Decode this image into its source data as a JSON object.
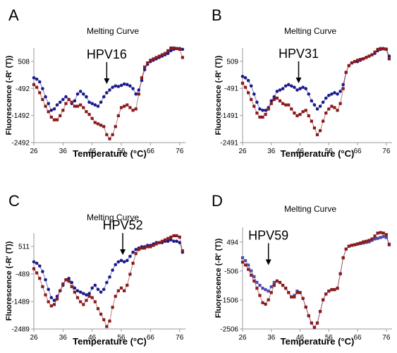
{
  "chart_data": [
    {
      "panel": "A",
      "type": "line",
      "title": "Melting Curve",
      "xlabel": "Temperature (°C)",
      "ylabel": "Fluorescence (-R' (T))",
      "xticks": [
        26,
        36,
        46,
        56,
        66,
        76
      ],
      "yticks": [
        -2492,
        -1492,
        -492,
        508
      ],
      "xlim": [
        26,
        78
      ],
      "ylim": [
        -2492,
        1000
      ],
      "grid": false,
      "annotation": {
        "text": "HPV16",
        "x": 51,
        "y": -380
      },
      "x": [
        26,
        27,
        28,
        29,
        30,
        31,
        32,
        33,
        34,
        35,
        36,
        37,
        38,
        39,
        40,
        41,
        42,
        43,
        44,
        45,
        46,
        47,
        48,
        49,
        50,
        51,
        52,
        53,
        54,
        55,
        56,
        57,
        58,
        59,
        60,
        61,
        62,
        63,
        64,
        65,
        66,
        67,
        68,
        69,
        70,
        71,
        72,
        73,
        74,
        75,
        76,
        77
      ],
      "series": [
        {
          "color": "#1a1a8c",
          "values": [
            -100,
            -150,
            -250,
            -500,
            -800,
            -1050,
            -1300,
            -1250,
            -1100,
            -1000,
            -900,
            -800,
            -900,
            -1050,
            -950,
            -700,
            -600,
            -700,
            -800,
            -1000,
            -1050,
            -1100,
            -1150,
            -1000,
            -800,
            -650,
            -550,
            -450,
            -400,
            -420,
            -380,
            -330,
            -350,
            -400,
            -500,
            -700,
            -550,
            -200,
            200,
            400,
            500,
            550,
            600,
            650,
            700,
            750,
            800,
            900,
            950,
            980,
            980,
            950
          ]
        },
        {
          "color": "#8b1a1a",
          "values": [
            -350,
            -450,
            -650,
            -900,
            -1150,
            -1350,
            -1550,
            -1650,
            -1650,
            -1500,
            -1300,
            -1050,
            -900,
            -1000,
            -1150,
            -1150,
            -1100,
            -1200,
            -1350,
            -1450,
            -1600,
            -1750,
            -1800,
            -1850,
            -1900,
            -2200,
            -2350,
            -2200,
            -1900,
            -1500,
            -1200,
            -1150,
            -1100,
            -1200,
            -1300,
            -1250,
            -700,
            -100,
            300,
            450,
            550,
            600,
            650,
            700,
            750,
            800,
            900,
            1000,
            1000,
            980,
            950,
            650
          ]
        }
      ]
    },
    {
      "panel": "B",
      "type": "line",
      "title": "Melting Curve",
      "xlabel": "Temperature (°C)",
      "ylabel": "Fluorescence (-R' (T))",
      "xticks": [
        26,
        36,
        46,
        56,
        66,
        76
      ],
      "yticks": [
        -2491,
        -1491,
        -491,
        509
      ],
      "xlim": [
        26,
        78
      ],
      "ylim": [
        -2491,
        1000
      ],
      "grid": false,
      "annotation": {
        "text": "HPV31",
        "x": 45.5,
        "y": -350
      },
      "x": [
        26,
        27,
        28,
        29,
        30,
        31,
        32,
        33,
        34,
        35,
        36,
        37,
        38,
        39,
        40,
        41,
        42,
        43,
        44,
        45,
        46,
        47,
        48,
        49,
        50,
        51,
        52,
        53,
        54,
        55,
        56,
        57,
        58,
        59,
        60,
        61,
        62,
        63,
        64,
        65,
        66,
        67,
        68,
        69,
        70,
        71,
        72,
        73,
        74,
        75,
        76,
        77
      ],
      "series": [
        {
          "color": "#1a1a8c",
          "values": [
            -50,
            -100,
            -200,
            -400,
            -700,
            -1000,
            -1250,
            -1300,
            -1300,
            -1200,
            -950,
            -800,
            -600,
            -550,
            -500,
            -400,
            -350,
            -400,
            -450,
            -550,
            -500,
            -450,
            -500,
            -700,
            -950,
            -1100,
            -1250,
            -1150,
            -1000,
            -850,
            -750,
            -700,
            -650,
            -700,
            -600,
            -350,
            100,
            350,
            450,
            500,
            500,
            550,
            600,
            650,
            700,
            750,
            800,
            900,
            950,
            980,
            960,
            700
          ]
        },
        {
          "color": "#8b1a1a",
          "values": [
            -300,
            -450,
            -650,
            -900,
            -1150,
            -1400,
            -1550,
            -1550,
            -1450,
            -1250,
            -1050,
            -900,
            -850,
            -950,
            -1050,
            -1100,
            -1100,
            -1250,
            -1400,
            -1500,
            -1450,
            -1350,
            -1300,
            -1500,
            -1700,
            -1950,
            -2200,
            -2050,
            -1700,
            -1400,
            -1250,
            -1150,
            -1200,
            -1300,
            -1050,
            -500,
            100,
            350,
            450,
            500,
            550,
            580,
            600,
            650,
            700,
            750,
            850,
            950,
            980,
            970,
            950,
            600
          ]
        }
      ]
    },
    {
      "panel": "C",
      "type": "line",
      "title": "Melting Curve",
      "xlabel": "Temperature (°C)",
      "ylabel": "Fluorescence (-R' (T))",
      "xticks": [
        26,
        36,
        46,
        56,
        66,
        76
      ],
      "yticks": [
        -2489,
        -1489,
        -489,
        511
      ],
      "xlim": [
        26,
        78
      ],
      "ylim": [
        -2489,
        1000
      ],
      "grid": false,
      "annotation": {
        "text": "HPV52",
        "x": 56.5,
        "y": 150
      },
      "x": [
        26,
        27,
        28,
        29,
        30,
        31,
        32,
        33,
        34,
        35,
        36,
        37,
        38,
        39,
        40,
        41,
        42,
        43,
        44,
        45,
        46,
        47,
        48,
        49,
        50,
        51,
        52,
        53,
        54,
        55,
        56,
        57,
        58,
        59,
        60,
        61,
        62,
        63,
        64,
        65,
        66,
        67,
        68,
        69,
        70,
        71,
        72,
        73,
        74,
        75,
        76,
        77
      ],
      "series": [
        {
          "color": "#1a1a8c",
          "values": [
            -50,
            -100,
            -200,
            -400,
            -700,
            -1050,
            -1350,
            -1450,
            -1300,
            -1100,
            -900,
            -700,
            -650,
            -800,
            -1000,
            -1100,
            -1150,
            -1200,
            -1250,
            -1200,
            -1000,
            -900,
            -1050,
            -1150,
            -1050,
            -800,
            -600,
            -350,
            -150,
            -50,
            0,
            -50,
            0,
            150,
            300,
            400,
            450,
            500,
            500,
            550,
            550,
            600,
            650,
            650,
            650,
            700,
            700,
            750,
            700,
            700,
            650,
            300
          ]
        },
        {
          "color": "#8b1a1a",
          "values": [
            -300,
            -450,
            -650,
            -950,
            -1250,
            -1500,
            -1650,
            -1600,
            -1400,
            -1100,
            -850,
            -700,
            -750,
            -950,
            -1150,
            -1350,
            -1500,
            -1600,
            -1450,
            -1300,
            -1350,
            -1500,
            -1750,
            -1950,
            -2150,
            -2400,
            -2200,
            -1700,
            -1300,
            -1100,
            -1000,
            -1100,
            -900,
            -500,
            -100,
            250,
            400,
            450,
            450,
            500,
            500,
            550,
            600,
            650,
            700,
            750,
            800,
            850,
            900,
            900,
            850,
            350
          ]
        }
      ]
    },
    {
      "panel": "D",
      "type": "line",
      "title": "Melting Curve",
      "xlabel": "Temperature (°C)",
      "ylabel": "Fluorescence (-R' (T))",
      "xticks": [
        26,
        36,
        46,
        56,
        66,
        76
      ],
      "yticks": [
        -2506,
        -1506,
        -506,
        494
      ],
      "xlim": [
        26,
        78
      ],
      "ylim": [
        -2506,
        1000
      ],
      "grid": false,
      "annotation": {
        "text": "HPV59",
        "x": 35,
        "y": -350
      },
      "x": [
        26,
        27,
        28,
        29,
        30,
        31,
        32,
        33,
        34,
        35,
        36,
        37,
        38,
        39,
        40,
        41,
        42,
        43,
        44,
        45,
        46,
        47,
        48,
        49,
        50,
        51,
        52,
        53,
        54,
        55,
        56,
        57,
        58,
        59,
        60,
        61,
        62,
        63,
        64,
        65,
        66,
        67,
        68,
        69,
        70,
        71,
        72,
        73,
        74,
        75,
        76,
        77
      ],
      "series": [
        {
          "color": "#4a4ab0",
          "values": [
            -50,
            -150,
            -300,
            -500,
            -700,
            -900,
            -1000,
            -1100,
            -1150,
            -1200,
            -1050,
            -900,
            -850,
            -900,
            -1000,
            -1100,
            -1250,
            -1400,
            -1350,
            -1200,
            -1250,
            -1450,
            -1750,
            -2050,
            -2300,
            -2450,
            -2300,
            -1900,
            -1500,
            -1300,
            -1200,
            -1150,
            -1150,
            -1100,
            -600,
            -50,
            250,
            350,
            380,
            400,
            420,
            440,
            460,
            480,
            500,
            550,
            600,
            620,
            650,
            680,
            650,
            420
          ]
        },
        {
          "color": "#8b1a1a",
          "values": [
            -200,
            -300,
            -450,
            -650,
            -850,
            -1100,
            -1350,
            -1600,
            -1650,
            -1500,
            -1250,
            -1000,
            -850,
            -900,
            -1000,
            -1100,
            -1250,
            -1400,
            -1400,
            -1250,
            -1250,
            -1450,
            -1750,
            -2050,
            -2300,
            -2450,
            -2300,
            -1900,
            -1500,
            -1300,
            -1200,
            -1150,
            -1150,
            -1100,
            -600,
            -50,
            250,
            350,
            380,
            400,
            430,
            460,
            500,
            520,
            550,
            600,
            700,
            800,
            820,
            800,
            750,
            400
          ]
        }
      ]
    }
  ]
}
